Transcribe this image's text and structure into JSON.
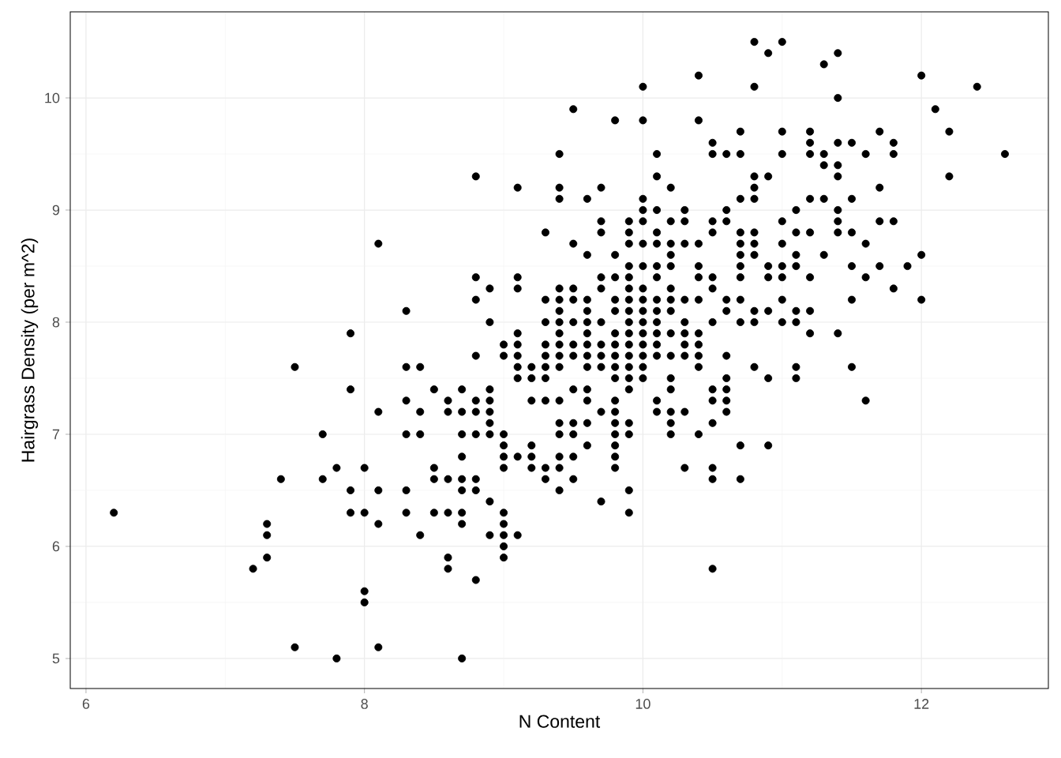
{
  "chart_data": {
    "type": "scatter",
    "xlabel": "N Content",
    "ylabel": "Hairgrass Density (per m^2)",
    "xlim": [
      5.887,
      12.912
    ],
    "ylim": [
      4.732,
      10.768
    ],
    "xticks": [
      6,
      8,
      10,
      12
    ],
    "yticks": [
      5,
      6,
      7,
      8,
      9,
      10
    ],
    "grid": true,
    "marker": "circle",
    "series": [
      {
        "color": "#000000",
        "x": [
          6.2,
          7.2,
          7.3,
          7.3,
          7.3,
          7.4,
          7.5,
          7.5,
          7.7,
          7.7,
          7.8,
          7.8,
          7.9,
          7.9,
          7.9,
          7.9,
          8.0,
          8.0,
          8.0,
          8.0,
          8.1,
          8.1,
          8.1,
          8.1,
          8.1,
          8.3,
          8.3,
          8.3,
          8.3,
          8.3,
          8.3,
          8.4,
          8.4,
          8.4,
          8.4,
          8.5,
          8.5,
          8.5,
          8.5,
          8.6,
          8.6,
          8.6,
          8.6,
          8.6,
          8.6,
          8.7,
          8.7,
          8.7,
          8.7,
          8.7,
          8.7,
          8.7,
          8.7,
          8.7,
          8.8,
          8.8,
          8.8,
          8.8,
          8.8,
          8.8,
          8.8,
          8.8,
          8.8,
          8.8,
          8.9,
          8.9,
          8.9,
          8.9,
          8.9,
          8.9,
          8.9,
          8.9,
          8.9,
          9.0,
          9.0,
          9.0,
          9.0,
          9.0,
          9.0,
          9.0,
          9.0,
          9.0,
          9.0,
          9.0,
          9.1,
          9.1,
          9.1,
          9.1,
          9.1,
          9.1,
          9.1,
          9.1,
          9.1,
          9.1,
          9.2,
          9.2,
          9.2,
          9.2,
          9.2,
          9.2,
          9.3,
          9.3,
          9.3,
          9.3,
          9.3,
          9.3,
          9.3,
          9.3,
          9.3,
          9.3,
          9.4,
          9.4,
          9.4,
          9.4,
          9.4,
          9.4,
          9.4,
          9.4,
          9.4,
          9.4,
          9.4,
          9.4,
          9.4,
          9.4,
          9.4,
          9.4,
          9.4,
          9.5,
          9.5,
          9.5,
          9.5,
          9.5,
          9.5,
          9.5,
          9.5,
          9.5,
          9.5,
          9.5,
          9.5,
          9.6,
          9.6,
          9.6,
          9.6,
          9.6,
          9.6,
          9.6,
          9.6,
          9.6,
          9.6,
          9.6,
          9.6,
          9.6,
          9.7,
          9.7,
          9.7,
          9.7,
          9.7,
          9.7,
          9.7,
          9.7,
          9.7,
          9.7,
          9.7,
          9.8,
          9.8,
          9.8,
          9.8,
          9.8,
          9.8,
          9.8,
          9.8,
          9.8,
          9.8,
          9.8,
          9.8,
          9.8,
          9.8,
          9.8,
          9.8,
          9.8,
          9.9,
          9.9,
          9.9,
          9.9,
          9.9,
          9.9,
          9.9,
          9.9,
          9.9,
          9.9,
          9.9,
          9.9,
          9.9,
          9.9,
          9.9,
          9.9,
          9.9,
          9.9,
          9.9,
          10.0,
          10.0,
          10.0,
          10.0,
          10.0,
          10.0,
          10.0,
          10.0,
          10.0,
          10.0,
          10.0,
          10.0,
          10.0,
          10.0,
          10.0,
          10.0,
          10.1,
          10.1,
          10.1,
          10.1,
          10.1,
          10.1,
          10.1,
          10.1,
          10.1,
          10.1,
          10.1,
          10.1,
          10.1,
          10.1,
          10.1,
          10.2,
          10.2,
          10.2,
          10.2,
          10.2,
          10.2,
          10.2,
          10.2,
          10.2,
          10.2,
          10.2,
          10.2,
          10.2,
          10.2,
          10.2,
          10.3,
          10.3,
          10.3,
          10.3,
          10.3,
          10.3,
          10.3,
          10.3,
          10.3,
          10.3,
          10.4,
          10.4,
          10.4,
          10.4,
          10.4,
          10.4,
          10.4,
          10.4,
          10.4,
          10.4,
          10.4,
          10.5,
          10.5,
          10.5,
          10.5,
          10.5,
          10.5,
          10.5,
          10.5,
          10.5,
          10.5,
          10.5,
          10.5,
          10.5,
          10.6,
          10.6,
          10.6,
          10.6,
          10.6,
          10.6,
          10.6,
          10.6,
          10.6,
          10.6,
          10.7,
          10.7,
          10.7,
          10.7,
          10.7,
          10.7,
          10.7,
          10.7,
          10.7,
          10.7,
          10.7,
          10.7,
          10.8,
          10.8,
          10.8,
          10.8,
          10.8,
          10.8,
          10.8,
          10.8,
          10.8,
          10.8,
          10.8,
          10.9,
          10.9,
          10.9,
          10.9,
          10.9,
          10.9,
          10.9,
          11.0,
          11.0,
          11.0,
          11.0,
          11.0,
          11.0,
          11.0,
          11.0,
          11.0,
          11.1,
          11.1,
          11.1,
          11.1,
          11.1,
          11.1,
          11.1,
          11.1,
          11.2,
          11.2,
          11.2,
          11.2,
          11.2,
          11.2,
          11.2,
          11.2,
          11.3,
          11.3,
          11.3,
          11.3,
          11.3,
          11.4,
          11.4,
          11.4,
          11.4,
          11.4,
          11.4,
          11.4,
          11.4,
          11.4,
          11.5,
          11.5,
          11.5,
          11.5,
          11.5,
          11.5,
          11.6,
          11.6,
          11.6,
          11.6,
          11.7,
          11.7,
          11.7,
          11.7,
          11.8,
          11.8,
          11.8,
          11.8,
          11.9,
          12.0,
          12.0,
          12.0,
          12.1,
          12.2,
          12.2,
          12.4,
          12.6
        ],
        "values": [
          6.3,
          5.8,
          6.2,
          6.1,
          5.9,
          6.6,
          7.6,
          5.1,
          7.0,
          6.6,
          6.7,
          5.0,
          7.9,
          7.4,
          6.5,
          6.3,
          6.7,
          6.3,
          5.6,
          5.5,
          8.7,
          7.2,
          6.5,
          6.2,
          5.1,
          8.1,
          7.6,
          7.3,
          7.0,
          6.5,
          6.3,
          7.6,
          7.2,
          7.0,
          6.1,
          7.4,
          6.7,
          6.6,
          6.3,
          7.3,
          7.2,
          6.6,
          6.3,
          5.9,
          5.8,
          7.4,
          7.2,
          7.0,
          6.8,
          6.6,
          6.5,
          6.3,
          6.2,
          5.0,
          9.3,
          8.4,
          8.2,
          7.7,
          7.3,
          7.2,
          7.0,
          6.6,
          6.5,
          5.7,
          8.3,
          8.0,
          7.4,
          7.3,
          7.2,
          7.1,
          7.0,
          6.4,
          6.1,
          7.8,
          7.7,
          7.0,
          6.9,
          6.8,
          6.7,
          6.3,
          6.2,
          6.1,
          6.0,
          5.9,
          9.2,
          8.4,
          8.3,
          7.9,
          7.8,
          7.7,
          7.6,
          7.5,
          6.8,
          6.1,
          7.6,
          7.5,
          7.3,
          6.9,
          6.8,
          6.7,
          8.8,
          8.2,
          8.0,
          7.8,
          7.7,
          7.6,
          7.5,
          7.3,
          6.7,
          6.6,
          9.5,
          9.2,
          9.1,
          8.3,
          8.2,
          8.1,
          8.0,
          7.9,
          7.8,
          7.7,
          7.6,
          7.3,
          7.1,
          7.0,
          6.8,
          6.7,
          6.5,
          9.9,
          8.7,
          8.3,
          8.2,
          8.0,
          7.8,
          7.7,
          7.4,
          7.1,
          7.0,
          6.8,
          6.6,
          9.1,
          8.6,
          8.2,
          8.1,
          8.0,
          7.9,
          7.8,
          7.7,
          7.6,
          7.4,
          7.3,
          7.1,
          6.9,
          9.2,
          8.9,
          8.8,
          8.4,
          8.3,
          8.0,
          7.8,
          7.7,
          7.6,
          7.2,
          6.4,
          9.8,
          8.6,
          8.4,
          8.2,
          8.1,
          7.9,
          7.8,
          7.7,
          7.6,
          7.5,
          7.3,
          7.2,
          7.1,
          7.0,
          6.9,
          6.8,
          6.7,
          8.9,
          8.8,
          8.7,
          8.5,
          8.4,
          8.3,
          8.2,
          8.1,
          8.0,
          7.9,
          7.8,
          7.7,
          7.6,
          7.5,
          7.4,
          7.1,
          7.0,
          6.5,
          6.3,
          10.1,
          9.8,
          9.1,
          9.0,
          8.9,
          8.7,
          8.5,
          8.3,
          8.2,
          8.1,
          8.0,
          7.9,
          7.8,
          7.7,
          7.6,
          7.5,
          9.5,
          9.3,
          9.0,
          8.8,
          8.7,
          8.5,
          8.4,
          8.2,
          8.1,
          8.0,
          7.9,
          7.8,
          7.7,
          7.3,
          7.2,
          9.2,
          8.9,
          8.7,
          8.6,
          8.5,
          8.3,
          8.2,
          8.1,
          7.9,
          7.7,
          7.5,
          7.4,
          7.2,
          7.1,
          7.0,
          9.0,
          8.9,
          8.7,
          8.2,
          8.0,
          7.9,
          7.8,
          7.7,
          7.2,
          6.7,
          10.2,
          9.8,
          8.7,
          8.5,
          8.4,
          8.2,
          7.9,
          7.8,
          7.7,
          7.6,
          7.0,
          9.6,
          9.5,
          8.9,
          8.8,
          8.4,
          8.3,
          8.0,
          7.4,
          7.3,
          7.1,
          6.7,
          6.6,
          5.8,
          9.5,
          9.0,
          8.9,
          8.2,
          8.1,
          7.7,
          7.5,
          7.4,
          7.3,
          7.2,
          9.7,
          9.5,
          9.1,
          8.8,
          8.7,
          8.6,
          8.5,
          8.4,
          8.2,
          8.0,
          6.9,
          6.6,
          10.5,
          10.1,
          9.3,
          9.2,
          9.1,
          8.8,
          8.7,
          8.6,
          8.1,
          8.0,
          7.6,
          10.4,
          9.3,
          8.5,
          8.4,
          8.1,
          7.5,
          6.9,
          10.5,
          9.7,
          9.5,
          8.9,
          8.7,
          8.5,
          8.4,
          8.2,
          8.0,
          9.0,
          8.8,
          8.6,
          8.5,
          8.1,
          8.0,
          7.6,
          7.5,
          9.7,
          9.6,
          9.5,
          9.1,
          8.8,
          8.4,
          8.1,
          7.9,
          10.3,
          9.5,
          9.4,
          9.1,
          8.6,
          10.4,
          10.0,
          9.6,
          9.4,
          9.3,
          9.0,
          8.9,
          8.8,
          7.9,
          9.6,
          9.1,
          8.8,
          8.5,
          8.2,
          7.6,
          9.5,
          8.7,
          8.4,
          7.3,
          9.7,
          9.2,
          8.9,
          8.5,
          9.6,
          9.5,
          8.9,
          8.3,
          8.5,
          10.2,
          8.6,
          8.2,
          9.9,
          9.7,
          9.3,
          10.1,
          9.5
        ]
      }
    ]
  }
}
